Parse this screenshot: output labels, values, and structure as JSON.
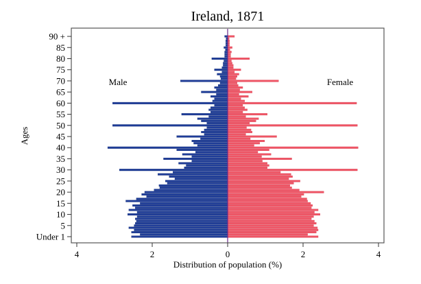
{
  "chart_data": {
    "type": "bar",
    "orientation": "horizontal",
    "subtype": "population-pyramid",
    "title": "Ireland, 1871",
    "xlabel": "Distribution of population (%)",
    "ylabel": "Ages",
    "xlim": [
      -4,
      4
    ],
    "x_ticks": [
      -4,
      -2,
      0,
      2,
      4
    ],
    "x_tick_labels": [
      "4",
      "2",
      "0",
      "2",
      "4"
    ],
    "y_ticks": [
      0,
      5,
      10,
      15,
      20,
      25,
      30,
      35,
      40,
      45,
      50,
      55,
      60,
      65,
      70,
      75,
      80,
      85,
      90
    ],
    "y_tick_labels": [
      "Under 1",
      "5",
      "10",
      "15",
      "20",
      "25",
      "30",
      "35",
      "40",
      "45",
      "50",
      "55",
      "60",
      "65",
      "70",
      "75",
      "80",
      "85",
      "90 +"
    ],
    "grid": false,
    "annotations": [
      {
        "text": "Male",
        "side": "left"
      },
      {
        "text": "Female",
        "side": "right"
      }
    ],
    "ages": [
      0,
      1,
      2,
      3,
      4,
      5,
      6,
      7,
      8,
      9,
      10,
      11,
      12,
      13,
      14,
      15,
      16,
      17,
      18,
      19,
      20,
      21,
      22,
      23,
      24,
      25,
      26,
      27,
      28,
      29,
      30,
      31,
      32,
      33,
      34,
      35,
      36,
      37,
      38,
      39,
      40,
      41,
      42,
      43,
      44,
      45,
      46,
      47,
      48,
      49,
      50,
      51,
      52,
      53,
      54,
      55,
      56,
      57,
      58,
      59,
      60,
      61,
      62,
      63,
      64,
      65,
      66,
      67,
      68,
      69,
      70,
      71,
      72,
      73,
      74,
      75,
      76,
      77,
      78,
      79,
      80,
      81,
      82,
      83,
      84,
      85,
      86,
      87,
      88,
      89,
      90
    ],
    "series": [
      {
        "name": "Male",
        "color": "#1f3d99",
        "values": [
          2.55,
          2.32,
          2.55,
          2.48,
          2.62,
          2.48,
          2.45,
          2.42,
          2.45,
          2.4,
          2.65,
          2.4,
          2.62,
          2.45,
          2.52,
          2.32,
          2.7,
          2.42,
          2.15,
          2.28,
          2.2,
          1.95,
          1.8,
          1.82,
          1.6,
          1.65,
          1.4,
          1.55,
          1.85,
          1.45,
          2.87,
          1.15,
          1.1,
          1.3,
          0.95,
          1.7,
          0.95,
          1.2,
          0.85,
          1.35,
          3.18,
          0.8,
          0.9,
          0.95,
          0.72,
          1.35,
          0.62,
          0.7,
          0.62,
          0.55,
          3.05,
          0.55,
          0.7,
          0.8,
          0.5,
          1.22,
          0.45,
          0.5,
          0.45,
          0.35,
          3.05,
          0.4,
          0.35,
          0.45,
          0.3,
          0.7,
          0.3,
          0.35,
          0.25,
          0.2,
          1.25,
          0.18,
          0.2,
          0.28,
          0.15,
          0.35,
          0.15,
          0.12,
          0.12,
          0.1,
          0.42,
          0.08,
          0.08,
          0.08,
          0.06,
          0.1,
          0.05,
          0.05,
          0.05,
          0.04,
          0.08
        ]
      },
      {
        "name": "Female",
        "color": "#f05565",
        "values": [
          2.4,
          2.12,
          2.35,
          2.4,
          2.38,
          2.28,
          2.35,
          2.3,
          2.22,
          2.28,
          2.45,
          2.3,
          2.4,
          2.22,
          2.25,
          2.2,
          2.12,
          2.1,
          1.95,
          2.02,
          2.55,
          1.9,
          1.7,
          1.65,
          1.75,
          1.92,
          1.62,
          1.72,
          1.68,
          1.4,
          3.44,
          1.05,
          1.1,
          1.05,
          0.92,
          1.7,
          0.9,
          1.15,
          0.8,
          1.1,
          3.46,
          0.7,
          0.85,
          0.98,
          0.6,
          1.3,
          0.48,
          0.65,
          0.62,
          0.5,
          3.44,
          0.58,
          0.75,
          0.82,
          0.48,
          1.05,
          0.4,
          0.52,
          0.45,
          0.4,
          3.42,
          0.45,
          0.35,
          0.55,
          0.3,
          0.65,
          0.32,
          0.4,
          0.28,
          0.25,
          1.35,
          0.22,
          0.25,
          0.3,
          0.18,
          0.35,
          0.15,
          0.15,
          0.12,
          0.1,
          0.58,
          0.08,
          0.08,
          0.1,
          0.06,
          0.12,
          0.05,
          0.05,
          0.05,
          0.04,
          0.18
        ]
      }
    ]
  }
}
